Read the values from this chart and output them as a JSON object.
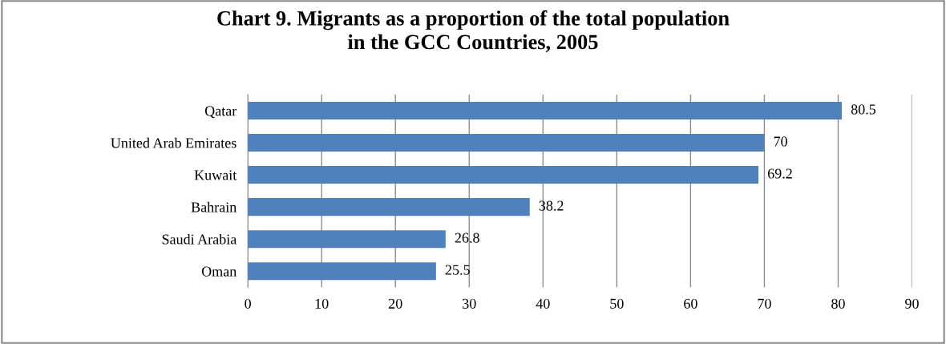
{
  "chart_data": {
    "type": "bar",
    "orientation": "horizontal",
    "title": "Chart 9. Migrants as a proportion of the total population\nin the GCC Countries, 2005",
    "categories": [
      "Qatar",
      "United Arab Emirates",
      "Kuwait",
      "Bahrain",
      "Saudi Arabia",
      "Oman"
    ],
    "values": [
      80.5,
      70,
      69.2,
      38.2,
      26.8,
      25.5
    ],
    "color": "#4f81bd",
    "xlim": [
      0,
      90
    ],
    "xticks": [
      0,
      10,
      20,
      30,
      40,
      50,
      60,
      70,
      80,
      90
    ],
    "grid": "x",
    "data_labels": true
  }
}
